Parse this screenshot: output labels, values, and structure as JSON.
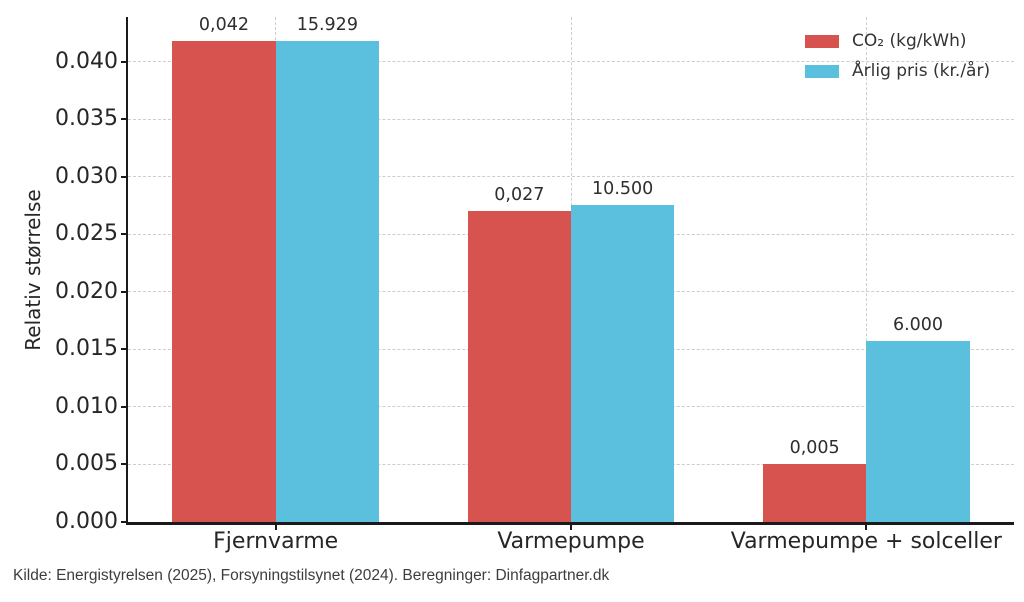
{
  "chart_data": {
    "type": "bar",
    "title": "",
    "xlabel": "",
    "ylabel": "Relativ størrelse",
    "categories": [
      "Fjernvarme",
      "Varmepumpe",
      "Varmepumpe + solceller"
    ],
    "series": [
      {
        "name": "CO₂ (kg/kWh)",
        "color": "#d6534f",
        "values": [
          0.042,
          0.027,
          0.005
        ],
        "value_labels": [
          "0,042",
          "0,027",
          "0,005"
        ],
        "plot_heights": [
          0.0418,
          0.027,
          0.005
        ]
      },
      {
        "name": "Årlig pris (kr./år)",
        "color": "#5ac0dd",
        "values": [
          15929,
          10500,
          6000
        ],
        "value_labels": [
          "15.929",
          "10.500",
          "6.000"
        ],
        "plot_heights": [
          0.0418,
          0.02755,
          0.01574
        ]
      }
    ],
    "ylim": [
      0,
      0.0439
    ],
    "yticks": [
      0,
      0.005,
      0.01,
      0.015,
      0.02,
      0.025,
      0.03,
      0.035,
      0.04
    ],
    "ytick_labels": [
      "0.000",
      "0.005",
      "0.010",
      "0.015",
      "0.020",
      "0.025",
      "0.030",
      "0.035",
      "0.040"
    ],
    "grid": "dashed horizontal lines at each y tick and dashed vertical lines at each category center",
    "legend_position": "upper-right",
    "bars_note": "Årlig pris bars are drawn normalized so their maximum matches the tallest CO₂ bar"
  },
  "footer": {
    "text": "Kilde: Energistyrelsen (2025), Forsyningstilsynet (2024). Beregninger: Dinfagpartner.dk"
  }
}
